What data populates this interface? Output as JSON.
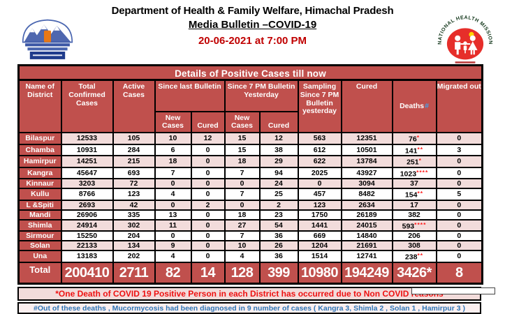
{
  "header": {
    "title": "Department of Health & Family Welfare, Himachal Pradesh",
    "subtitle": "Media Bulletin –COVID-19",
    "datetime": "20-06-2021 at 7:00 PM"
  },
  "logos": {
    "left": "himachal-pradesh-government-emblem",
    "right": "national-health-mission-logo",
    "nhm_arc_text": "NATIONAL HEALTH MISSION"
  },
  "table": {
    "title": "Details of Positive Cases till now",
    "columns": {
      "district": "Name of District",
      "confirmed": "Total Confirmed Cases",
      "active": "Active Cases",
      "since_last": "Since last Bulletin",
      "since_7pm": "Since 7 PM Bulletin Yesterday",
      "new_cases": "New Cases",
      "cured_sub": "Cured",
      "sampling": "Sampling Since 7 PM Bulletin yesterday",
      "cured": "Cured",
      "deaths": "Deaths",
      "deaths_hash": "#",
      "migrated": "Migrated out"
    },
    "rows": [
      {
        "district": "Bilaspur",
        "confirmed": "12533",
        "active": "105",
        "new_since_last": "10",
        "cured_since_last": "12",
        "new_since_7pm": "15",
        "cured_since_7pm": "12",
        "sampling": "563",
        "cured": "12351",
        "deaths": "76",
        "deaths_mark": "*",
        "migrated": "0"
      },
      {
        "district": "Chamba",
        "confirmed": "10931",
        "active": "284",
        "new_since_last": "6",
        "cured_since_last": "0",
        "new_since_7pm": "15",
        "cured_since_7pm": "38",
        "sampling": "612",
        "cured": "10501",
        "deaths": "141",
        "deaths_mark": "**",
        "migrated": "3"
      },
      {
        "district": "Hamirpur",
        "confirmed": "14251",
        "active": "215",
        "new_since_last": "18",
        "cured_since_last": "0",
        "new_since_7pm": "18",
        "cured_since_7pm": "29",
        "sampling": "622",
        "cured": "13784",
        "deaths": "251",
        "deaths_mark": "*",
        "migrated": "0"
      },
      {
        "district": "Kangra",
        "confirmed": "45647",
        "active": "693",
        "new_since_last": "7",
        "cured_since_last": "0",
        "new_since_7pm": "7",
        "cured_since_7pm": "94",
        "sampling": "2025",
        "cured": "43927",
        "deaths": "1023",
        "deaths_mark": "****",
        "migrated": "0"
      },
      {
        "district": "Kinnaur",
        "confirmed": "3203",
        "active": "72",
        "new_since_last": "0",
        "cured_since_last": "0",
        "new_since_7pm": "0",
        "cured_since_7pm": "24",
        "sampling": "0",
        "cured": "3094",
        "deaths": "37",
        "deaths_mark": "",
        "migrated": "0"
      },
      {
        "district": "Kullu",
        "confirmed": "8766",
        "active": "123",
        "new_since_last": "4",
        "cured_since_last": "0",
        "new_since_7pm": "7",
        "cured_since_7pm": "25",
        "sampling": "457",
        "cured": "8482",
        "deaths": "154",
        "deaths_mark": "**",
        "migrated": "5"
      },
      {
        "district": "L &Spiti",
        "confirmed": "2693",
        "active": "42",
        "new_since_last": "0",
        "cured_since_last": "2",
        "new_since_7pm": "0",
        "cured_since_7pm": "2",
        "sampling": "123",
        "cured": "2634",
        "deaths": "17",
        "deaths_mark": "",
        "migrated": "0"
      },
      {
        "district": "Mandi",
        "confirmed": "26906",
        "active": "335",
        "new_since_last": "13",
        "cured_since_last": "0",
        "new_since_7pm": "18",
        "cured_since_7pm": "23",
        "sampling": "1750",
        "cured": "26189",
        "deaths": "382",
        "deaths_mark": "",
        "migrated": "0"
      },
      {
        "district": "Shimla",
        "confirmed": "24914",
        "active": "302",
        "new_since_last": "11",
        "cured_since_last": "0",
        "new_since_7pm": "27",
        "cured_since_7pm": "54",
        "sampling": "1441",
        "cured": "24015",
        "deaths": "593",
        "deaths_mark": "****",
        "migrated": "0"
      },
      {
        "district": "Sirmour",
        "confirmed": "15250",
        "active": "204",
        "new_since_last": "0",
        "cured_since_last": "0",
        "new_since_7pm": "7",
        "cured_since_7pm": "36",
        "sampling": "669",
        "cured": "14840",
        "deaths": "206",
        "deaths_mark": "",
        "migrated": "0"
      },
      {
        "district": "Solan",
        "confirmed": "22133",
        "active": "134",
        "new_since_last": "9",
        "cured_since_last": "0",
        "new_since_7pm": "10",
        "cured_since_7pm": "26",
        "sampling": "1204",
        "cured": "21691",
        "deaths": "308",
        "deaths_mark": "",
        "migrated": "0"
      },
      {
        "district": "Una",
        "confirmed": "13183",
        "active": "202",
        "new_since_last": "4",
        "cured_since_last": "0",
        "new_since_7pm": "4",
        "cured_since_7pm": "36",
        "sampling": "1514",
        "cured": "12741",
        "deaths": "238",
        "deaths_mark": "**",
        "migrated": "0"
      }
    ],
    "total_row": {
      "label": "Total",
      "confirmed": "200410",
      "active": "2711",
      "new_since_last": "82",
      "cured_since_last": "14",
      "new_since_7pm": "128",
      "cured_since_7pm": "399",
      "sampling": "10980",
      "cured": "194249",
      "deaths": "3426",
      "deaths_mark": "*",
      "migrated": "8"
    }
  },
  "notes": [
    "*One Death of COVID 19 Positive Person in each District has occurred due to Non COVID reasons",
    "#Out of these deaths , Mucormycosis had been diagnosed in 9 number of cases ( Kangra 3, Shimla 2 , Solan 1 , Hamirpur 3 )"
  ],
  "colors": {
    "table_red": "#C0504D",
    "row_pink": "#F2DCDB",
    "date_red": "#C00000",
    "note1_red": "#EE1111",
    "note2_blue": "#2E75B6",
    "deaths_hash_blue": "#41A0E8",
    "asterisk_red": "#FF1A1A"
  }
}
